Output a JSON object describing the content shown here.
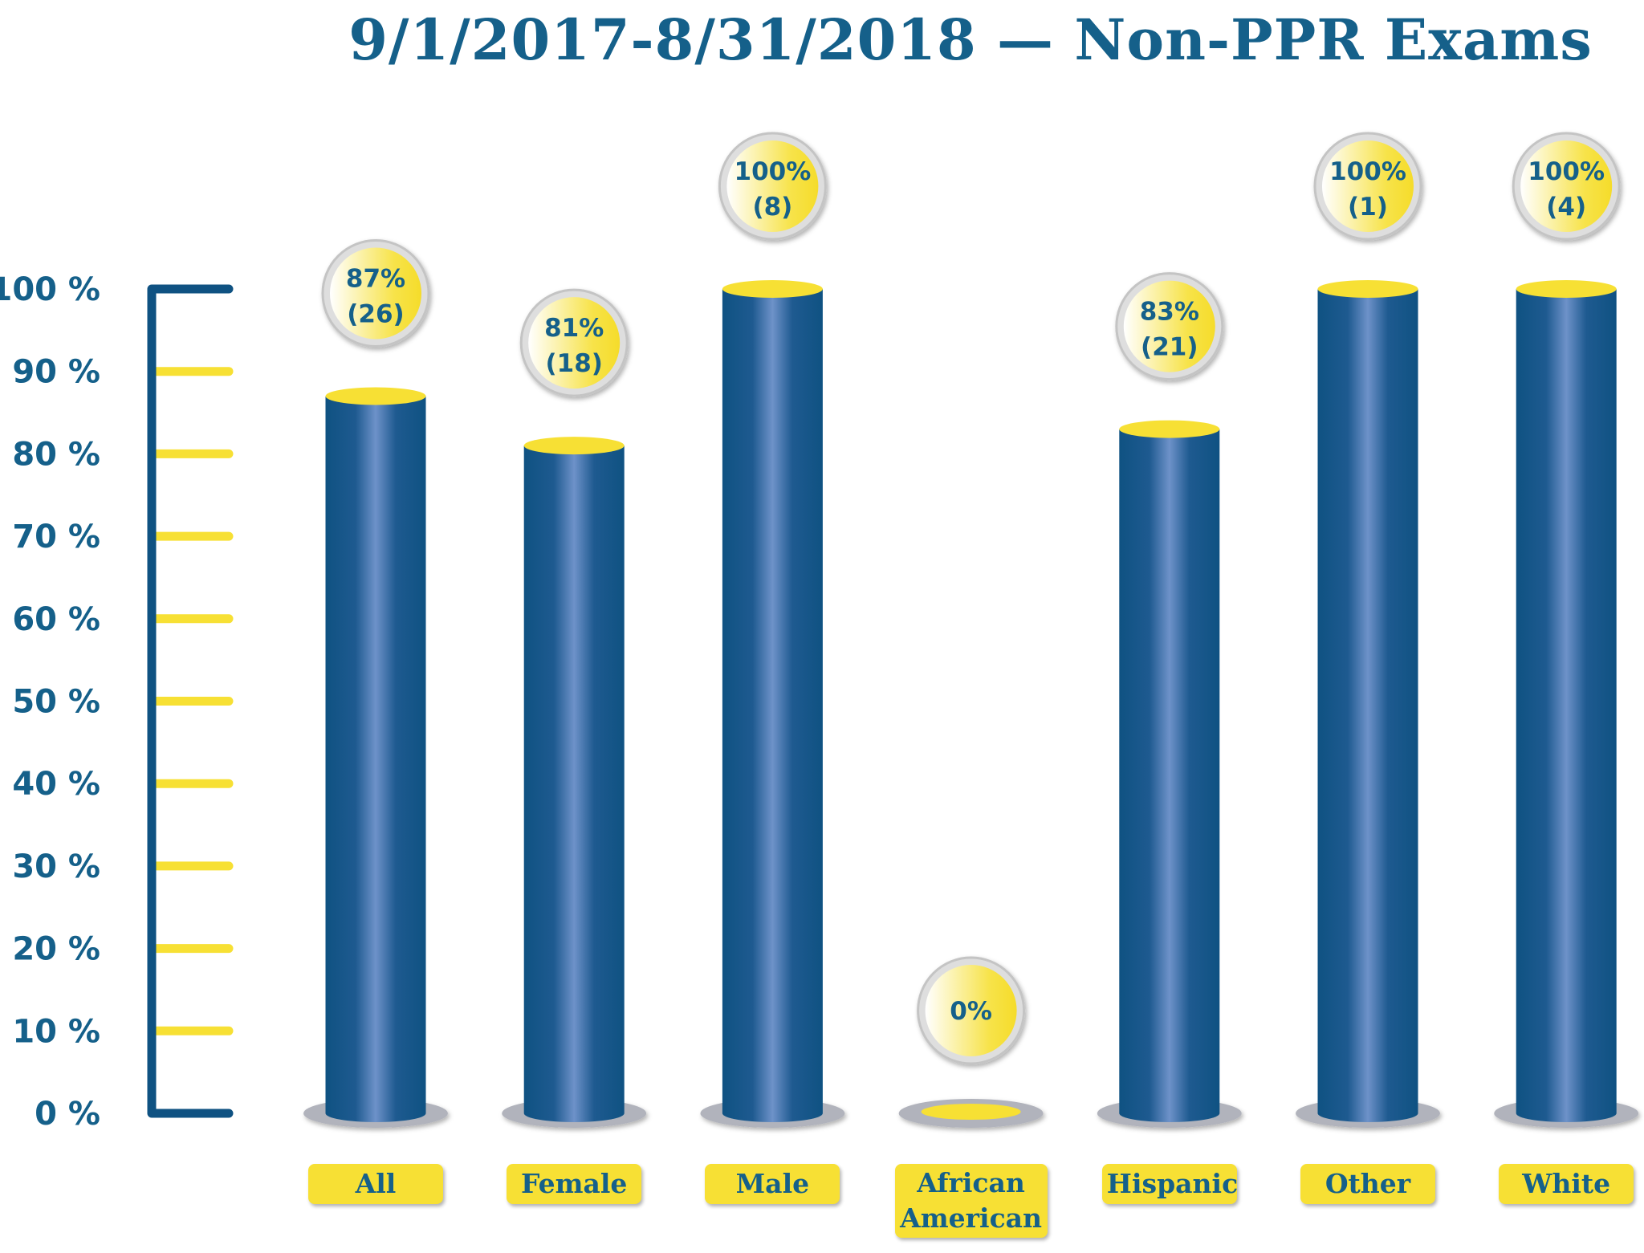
{
  "chart_data": {
    "type": "bar",
    "title": "9/1/2017-8/31/2018 — Non-PPR Exams",
    "xlabel": "",
    "ylabel": "",
    "ylim": [
      0,
      100
    ],
    "y_ticks": [
      "0 %",
      "10 %",
      "20 %",
      "30 %",
      "40 %",
      "50 %",
      "60 %",
      "70 %",
      "80 %",
      "90 %",
      "100 %"
    ],
    "categories": [
      "All",
      "Female",
      "Male",
      "African American",
      "Hispanic",
      "Other",
      "White"
    ],
    "values": [
      87,
      81,
      100,
      0,
      83,
      100,
      100
    ],
    "data_labels": [
      "87%",
      "81%",
      "100%",
      "0%",
      "83%",
      "100%",
      "100%"
    ],
    "counts": [
      "(26)",
      "(18)",
      "(8)",
      "",
      "(21)",
      "(1)",
      "(4)"
    ],
    "colors": {
      "bar": "#0f5282",
      "bar_highlight": "#6e92c9",
      "accent": "#f7e034",
      "base": "#b1b3bc",
      "text": "#15608a"
    }
  }
}
